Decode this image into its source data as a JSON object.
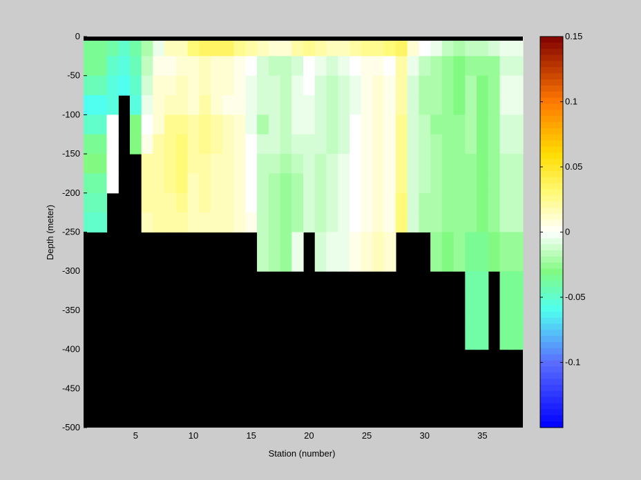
{
  "chart_data": {
    "type": "heatmap",
    "title": "",
    "xlabel": "Station (number)",
    "ylabel": "Depth (meter)",
    "xlim": [
      1,
      38
    ],
    "ylim": [
      -500,
      0
    ],
    "x_ticks": [
      5,
      10,
      15,
      20,
      25,
      30,
      35
    ],
    "y_ticks": [
      0,
      -50,
      -100,
      -150,
      -200,
      -250,
      -300,
      -350,
      -400,
      -450,
      -500
    ],
    "x_tick_labels": [
      "5",
      "10",
      "15",
      "20",
      "25",
      "30",
      "35"
    ],
    "y_tick_labels": [
      "0",
      "-50",
      "-100",
      "-150",
      "-200",
      "-250",
      "-300",
      "-350",
      "-400",
      "-450",
      "-500"
    ],
    "grid": false,
    "colorbar": {
      "range": [
        -0.15,
        0.15
      ],
      "ticks": [
        0.15,
        0.1,
        0.05,
        0,
        -0.05,
        -0.1
      ],
      "tick_labels": [
        "0.15",
        "0.1",
        "0.05",
        "0",
        "-0.05",
        "-0.1"
      ],
      "colormap": "jet-with-white-center"
    },
    "colors": {
      "land_mask": "#000000",
      "background": "#cccccc"
    },
    "station_columns": [
      {
        "station": 1,
        "bottom_depth": -250,
        "values": [
          -0.035,
          -0.035,
          -0.045,
          -0.06,
          -0.05,
          -0.035,
          -0.03,
          -0.04,
          -0.045,
          -0.05
        ]
      },
      {
        "station": 2,
        "bottom_depth": -250,
        "values": [
          -0.035,
          -0.035,
          -0.045,
          -0.06,
          -0.05,
          -0.035,
          -0.03,
          -0.04,
          -0.045,
          -0.05
        ]
      },
      {
        "station": 3,
        "bottom_depth": -200,
        "values": [
          -0.04,
          -0.05,
          -0.055,
          -0.055,
          0.0,
          0.0,
          0.0,
          0.0
        ]
      },
      {
        "station": 4,
        "bottom_depth": -75,
        "values": [
          -0.05,
          -0.055,
          -0.06
        ]
      },
      {
        "station": 5,
        "bottom_depth": -150,
        "values": [
          -0.04,
          -0.045,
          -0.05,
          -0.055,
          -0.03,
          -0.03
        ]
      },
      {
        "station": 6,
        "bottom_depth": -250,
        "values": [
          -0.02,
          -0.015,
          -0.01,
          -0.005,
          0.0,
          0.005,
          0.02,
          0.02,
          0.02,
          0.015
        ]
      },
      {
        "station": 7,
        "bottom_depth": -250,
        "values": [
          -0.005,
          0.005,
          0.01,
          0.01,
          0.01,
          0.02,
          0.02,
          0.02,
          0.02,
          0.02
        ]
      },
      {
        "station": 8,
        "bottom_depth": -250,
        "values": [
          0.015,
          0.005,
          0.01,
          0.015,
          0.025,
          0.025,
          0.025,
          0.025,
          0.02,
          0.02
        ]
      },
      {
        "station": 9,
        "bottom_depth": -250,
        "values": [
          0.015,
          0.01,
          0.015,
          0.015,
          0.025,
          0.03,
          0.03,
          0.03,
          0.025,
          0.02
        ]
      },
      {
        "station": 10,
        "bottom_depth": -250,
        "values": [
          0.03,
          0.01,
          0.01,
          0.01,
          0.02,
          0.02,
          0.02,
          0.015,
          0.015,
          0.015
        ]
      },
      {
        "station": 11,
        "bottom_depth": -250,
        "values": [
          0.035,
          0.015,
          0.015,
          0.02,
          0.025,
          0.025,
          0.02,
          0.02,
          0.02,
          0.015
        ]
      },
      {
        "station": 12,
        "bottom_depth": -250,
        "values": [
          0.035,
          0.01,
          0.01,
          0.01,
          0.02,
          0.02,
          0.015,
          0.015,
          0.015,
          0.015
        ]
      },
      {
        "station": 13,
        "bottom_depth": -250,
        "values": [
          0.035,
          0.01,
          0.01,
          0.005,
          0.015,
          0.015,
          0.015,
          0.015,
          0.015,
          0.015
        ]
      },
      {
        "station": 14,
        "bottom_depth": -250,
        "values": [
          0.025,
          0.005,
          0.005,
          0.005,
          0.01,
          0.01,
          0.01,
          0.01,
          0.01,
          0.01
        ]
      },
      {
        "station": 15,
        "bottom_depth": -250,
        "values": [
          0.02,
          0.0,
          -0.005,
          -0.005,
          -0.005,
          0.0,
          0.0,
          0.0,
          0.0,
          0.005
        ]
      },
      {
        "station": 16,
        "bottom_depth": -300,
        "values": [
          0.015,
          -0.01,
          -0.01,
          -0.01,
          -0.02,
          -0.01,
          -0.015,
          -0.015,
          -0.015,
          -0.015,
          -0.015,
          -0.015
        ]
      },
      {
        "station": 17,
        "bottom_depth": -300,
        "values": [
          0.01,
          -0.015,
          -0.01,
          -0.01,
          -0.01,
          -0.01,
          -0.015,
          -0.02,
          -0.02,
          -0.02,
          -0.02,
          -0.02
        ]
      },
      {
        "station": 18,
        "bottom_depth": -300,
        "values": [
          0.01,
          -0.015,
          -0.015,
          -0.015,
          -0.015,
          -0.015,
          -0.02,
          -0.025,
          -0.025,
          -0.025,
          -0.025,
          -0.025
        ]
      },
      {
        "station": 19,
        "bottom_depth": -300,
        "values": [
          0.02,
          -0.01,
          -0.005,
          -0.005,
          -0.005,
          -0.01,
          -0.015,
          -0.02,
          -0.02,
          -0.02,
          -0.005,
          -0.005
        ]
      },
      {
        "station": 20,
        "bottom_depth": -250,
        "values": [
          0.025,
          0.0,
          0.0,
          -0.005,
          -0.005,
          -0.01,
          -0.01,
          -0.01,
          -0.01,
          -0.01
        ]
      },
      {
        "station": 21,
        "bottom_depth": -300,
        "values": [
          0.02,
          -0.005,
          -0.01,
          -0.01,
          -0.01,
          -0.01,
          -0.015,
          -0.015,
          -0.015,
          -0.015,
          -0.01,
          -0.01
        ]
      },
      {
        "station": 22,
        "bottom_depth": -300,
        "values": [
          0.015,
          -0.01,
          -0.015,
          -0.015,
          -0.015,
          -0.015,
          -0.01,
          -0.01,
          -0.01,
          -0.01,
          -0.005,
          -0.005
        ]
      },
      {
        "station": 23,
        "bottom_depth": -300,
        "values": [
          0.015,
          -0.005,
          -0.01,
          -0.01,
          -0.01,
          -0.01,
          -0.005,
          -0.005,
          -0.005,
          -0.005,
          -0.005,
          -0.005
        ]
      },
      {
        "station": 24,
        "bottom_depth": -300,
        "values": [
          0.02,
          0.0,
          -0.005,
          -0.005,
          0.0,
          0.0,
          0.0,
          0.0,
          0.0,
          0.0,
          0.005,
          0.005
        ]
      },
      {
        "station": 25,
        "bottom_depth": -300,
        "values": [
          0.025,
          0.005,
          0.005,
          0.005,
          0.005,
          0.005,
          0.005,
          0.005,
          0.005,
          0.005,
          0.01,
          0.01
        ]
      },
      {
        "station": 26,
        "bottom_depth": -300,
        "values": [
          0.025,
          0.005,
          0.01,
          0.01,
          0.01,
          0.01,
          0.01,
          0.01,
          0.01,
          0.01,
          0.015,
          0.015
        ]
      },
      {
        "station": 27,
        "bottom_depth": -300,
        "values": [
          0.03,
          0.0,
          0.005,
          0.005,
          0.005,
          0.005,
          0.005,
          0.005,
          0.005,
          0.005,
          0.01,
          0.01
        ]
      },
      {
        "station": 28,
        "bottom_depth": -250,
        "values": [
          0.035,
          0.02,
          0.02,
          0.02,
          0.025,
          0.025,
          0.025,
          0.025,
          0.03,
          0.03
        ]
      },
      {
        "station": 29,
        "bottom_depth": -250,
        "values": [
          0.01,
          -0.005,
          -0.01,
          -0.01,
          -0.01,
          -0.01,
          -0.01,
          -0.01,
          -0.01,
          -0.01
        ]
      },
      {
        "station": 30,
        "bottom_depth": -250,
        "values": [
          0.0,
          -0.015,
          -0.02,
          -0.02,
          -0.015,
          -0.015,
          -0.015,
          -0.015,
          -0.02,
          -0.02
        ]
      },
      {
        "station": 31,
        "bottom_depth": -300,
        "values": [
          -0.005,
          -0.02,
          -0.02,
          -0.02,
          -0.025,
          -0.02,
          -0.02,
          -0.02,
          -0.02,
          -0.02,
          -0.025,
          -0.025
        ]
      },
      {
        "station": 32,
        "bottom_depth": -300,
        "values": [
          -0.015,
          -0.025,
          -0.025,
          -0.025,
          -0.025,
          -0.025,
          -0.025,
          -0.025,
          -0.025,
          -0.025,
          -0.03,
          -0.03
        ]
      },
      {
        "station": 33,
        "bottom_depth": -300,
        "values": [
          -0.02,
          -0.03,
          -0.03,
          -0.03,
          -0.025,
          -0.025,
          -0.025,
          -0.025,
          -0.025,
          -0.025,
          -0.025,
          -0.025
        ]
      },
      {
        "station": 34,
        "bottom_depth": -400,
        "values": [
          -0.015,
          -0.025,
          -0.02,
          -0.02,
          -0.02,
          -0.02,
          -0.025,
          -0.025,
          -0.025,
          -0.025,
          -0.035,
          -0.035,
          -0.04,
          -0.04,
          -0.04,
          -0.04
        ]
      },
      {
        "station": 35,
        "bottom_depth": -400,
        "values": [
          -0.015,
          -0.025,
          -0.03,
          -0.03,
          -0.03,
          -0.03,
          -0.03,
          -0.03,
          -0.03,
          -0.03,
          -0.035,
          -0.035,
          -0.04,
          -0.04,
          -0.04,
          -0.04
        ]
      },
      {
        "station": 36,
        "bottom_depth": -300,
        "values": [
          -0.01,
          -0.025,
          -0.025,
          -0.025,
          -0.025,
          -0.025,
          -0.025,
          -0.025,
          -0.025,
          -0.025,
          -0.03,
          -0.03
        ]
      },
      {
        "station": 37,
        "bottom_depth": -400,
        "values": [
          -0.005,
          -0.01,
          -0.005,
          -0.005,
          -0.01,
          -0.01,
          -0.015,
          -0.015,
          -0.015,
          -0.015,
          -0.025,
          -0.025,
          -0.035,
          -0.035,
          -0.035,
          -0.035
        ]
      },
      {
        "station": 38,
        "bottom_depth": -400,
        "values": [
          -0.005,
          -0.01,
          -0.005,
          -0.005,
          -0.01,
          -0.01,
          -0.015,
          -0.015,
          -0.015,
          -0.015,
          -0.025,
          -0.025,
          -0.035,
          -0.035,
          -0.035,
          -0.035
        ]
      }
    ]
  }
}
